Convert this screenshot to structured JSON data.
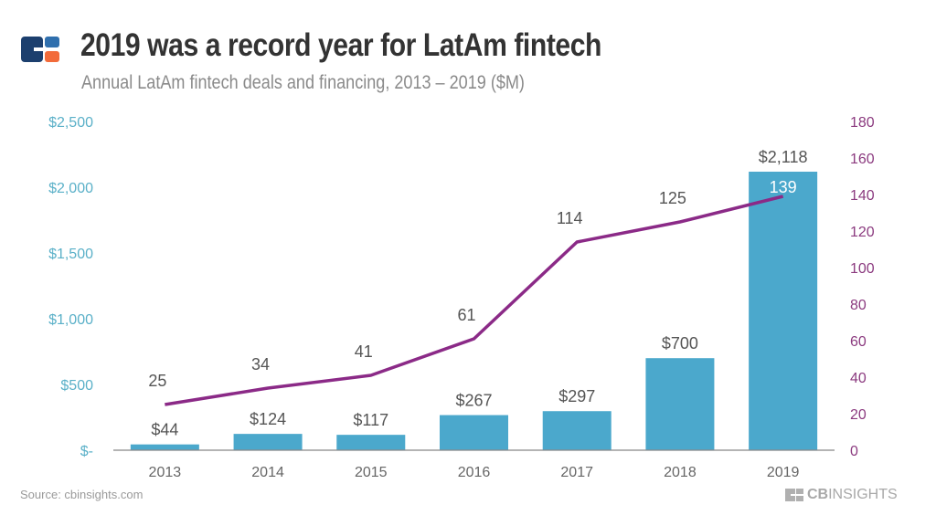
{
  "header": {
    "title": "2019 was a record year for LatAm fintech",
    "subtitle": "Annual LatAm fintech deals and financing, 2013 – 2019 ($M)"
  },
  "footer": {
    "source": "Source: cbinsights.com",
    "brand_bold": "CB",
    "brand_light": "INSIGHTS"
  },
  "colors": {
    "bar": "#4ba8cc",
    "line": "#8b2a87",
    "left_axis_text": "#5ab0c8",
    "right_axis_text": "#8b3a7f",
    "label_text": "#555555",
    "logo_dark": "#1c3f6e",
    "logo_blue": "#2f6fad",
    "logo_orange": "#f26b3a"
  },
  "chart_data": {
    "type": "bar+line",
    "title": "2019 was a record year for LatAm fintech",
    "subtitle": "Annual LatAm fintech deals and financing, 2013 – 2019 ($M)",
    "categories": [
      "2013",
      "2014",
      "2015",
      "2016",
      "2017",
      "2018",
      "2019"
    ],
    "series": [
      {
        "name": "Financing ($M)",
        "type": "bar",
        "axis": "left",
        "values": [
          44,
          124,
          117,
          267,
          297,
          700,
          2118
        ],
        "labels": [
          "$44",
          "$124",
          "$117",
          "$267",
          "$297",
          "$700",
          "$2,118"
        ]
      },
      {
        "name": "Deals",
        "type": "line",
        "axis": "right",
        "values": [
          25,
          34,
          41,
          61,
          114,
          125,
          139
        ],
        "labels": [
          "25",
          "34",
          "41",
          "61",
          "114",
          "125",
          "139"
        ]
      }
    ],
    "left_axis": {
      "ylim": [
        0,
        2500
      ],
      "ticks": [
        0,
        500,
        1000,
        1500,
        2000,
        2500
      ],
      "tick_labels": [
        "$-",
        "$500",
        "$1,000",
        "$1,500",
        "$2,000",
        "$2,500"
      ]
    },
    "right_axis": {
      "ylim": [
        0,
        180
      ],
      "ticks": [
        0,
        20,
        40,
        60,
        80,
        100,
        120,
        140,
        160,
        180
      ],
      "tick_labels": [
        "0",
        "20",
        "40",
        "60",
        "80",
        "100",
        "120",
        "140",
        "160",
        "180"
      ]
    },
    "grid": false,
    "legend": "none"
  }
}
